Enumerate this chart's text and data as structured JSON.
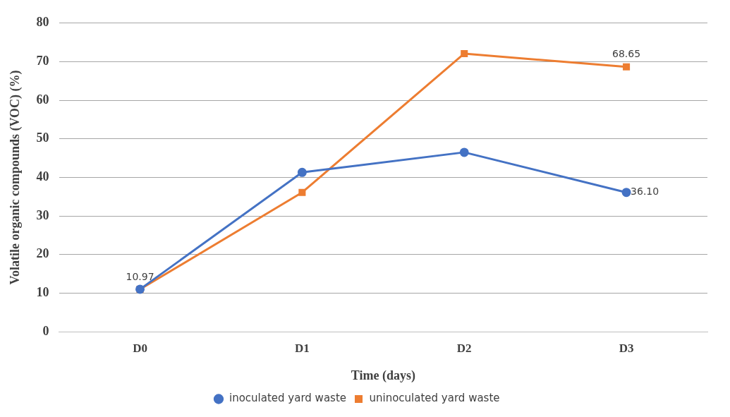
{
  "chart_data": {
    "type": "line",
    "xlabel": "Time (days)",
    "ylabel": "Volatile organic compounds (VOC) (%)",
    "categories": [
      "D0",
      "D1",
      "D2",
      "D3"
    ],
    "series": [
      {
        "name": "inoculated yard waste",
        "color": "#4472c4",
        "marker": "circle",
        "values": [
          11.0,
          41.3,
          46.5,
          36.1
        ],
        "value_labels": [
          null,
          null,
          null,
          "36.10"
        ]
      },
      {
        "name": "uninoculated yard waste",
        "color": "#ed7d31",
        "marker": "square",
        "values": [
          10.97,
          36.1,
          72.1,
          68.65
        ],
        "value_labels": [
          "10.97",
          null,
          null,
          "68.65"
        ]
      }
    ],
    "ylim": [
      0,
      80
    ],
    "yticks": [
      0,
      10,
      20,
      30,
      40,
      50,
      60,
      70,
      80
    ],
    "grid": "y",
    "legend": "bottom"
  }
}
